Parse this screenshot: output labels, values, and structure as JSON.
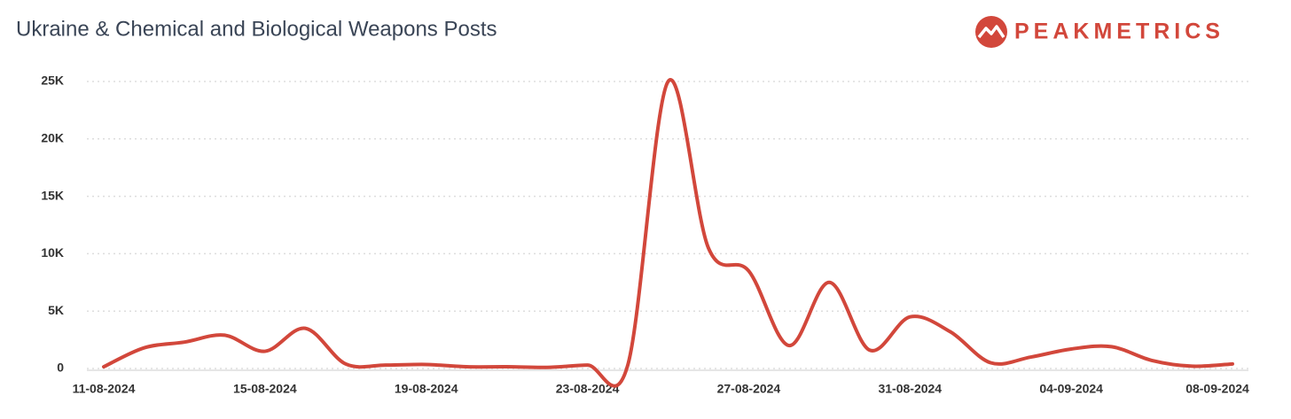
{
  "chart_data": {
    "type": "line",
    "title": "Ukraine & Chemical and Biological Weapons Posts",
    "logo": "PEAKMETRICS",
    "categories": [
      "11-08-2024",
      null,
      null,
      null,
      "15-08-2024",
      null,
      null,
      null,
      "19-08-2024",
      null,
      null,
      null,
      "23-08-2024",
      null,
      null,
      null,
      "27-08-2024",
      null,
      null,
      null,
      "31-08-2024",
      null,
      null,
      null,
      "04-09-2024",
      null,
      null,
      null,
      "08-09-2024"
    ],
    "series": [
      {
        "name": "Posts",
        "color": "#d2473b",
        "values": [
          150,
          1800,
          2300,
          2900,
          1500,
          3500,
          400,
          300,
          350,
          150,
          150,
          100,
          300,
          300,
          25000,
          10500,
          8500,
          2000,
          7500,
          1600,
          4500,
          3200,
          500,
          1000,
          1700,
          1900,
          700,
          200,
          400
        ]
      }
    ],
    "ylim": [
      0,
      25000
    ],
    "yticks": [
      0,
      {
        "value": 5000,
        "label": "5K"
      },
      {
        "value": 10000,
        "label": "10K"
      },
      {
        "value": 15000,
        "label": "15K"
      },
      {
        "value": 20000,
        "label": "20K"
      },
      {
        "value": 25000,
        "label": "25K"
      }
    ],
    "grid": true
  }
}
